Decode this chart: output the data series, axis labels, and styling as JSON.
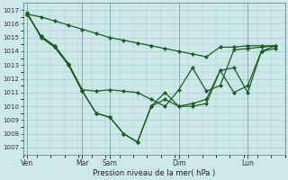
{
  "xlabel": "Pression niveau de la mer( hPa )",
  "ylim": [
    1006.5,
    1017.5
  ],
  "yticks": [
    1007,
    1008,
    1009,
    1010,
    1011,
    1012,
    1013,
    1014,
    1015,
    1016,
    1017
  ],
  "xtick_labels": [
    "Ven",
    "Mar",
    "Sam",
    "Dim",
    "Lun"
  ],
  "xtick_positions": [
    0,
    4,
    6,
    11,
    16
  ],
  "background_color": "#cce8e8",
  "line_color": "#1a5e20",
  "grid_color": "#aacccc",
  "lines": [
    {
      "x": [
        0,
        1,
        2,
        3,
        4,
        5,
        6,
        7,
        8,
        9,
        10,
        11,
        12,
        13,
        14,
        15,
        16,
        17,
        18
      ],
      "y": [
        1016.7,
        1016.5,
        1016.2,
        1015.9,
        1015.6,
        1015.3,
        1015.0,
        1014.8,
        1014.6,
        1014.4,
        1014.2,
        1014.0,
        1013.8,
        1013.6,
        1014.3,
        1014.3,
        1014.4,
        1014.4,
        1014.4
      ]
    },
    {
      "x": [
        0,
        1,
        2,
        3,
        4,
        5,
        6,
        7,
        8,
        9,
        10,
        11,
        12,
        13,
        14,
        15,
        16,
        17,
        18
      ],
      "y": [
        1016.7,
        1015.1,
        1014.4,
        1013.1,
        1011.2,
        1011.1,
        1011.2,
        1011.1,
        1011.0,
        1010.5,
        1010.0,
        1011.2,
        1012.8,
        1011.1,
        1011.5,
        1014.1,
        1014.2,
        1014.3,
        1014.4
      ]
    },
    {
      "x": [
        0,
        1,
        2,
        3,
        4,
        5,
        6,
        7,
        8,
        9,
        10,
        11,
        12,
        13,
        14,
        15,
        16,
        17,
        18
      ],
      "y": [
        1016.8,
        1015.0,
        1014.3,
        1013.0,
        1011.1,
        1009.5,
        1009.2,
        1008.0,
        1007.4,
        1010.0,
        1011.0,
        1010.0,
        1010.0,
        1010.2,
        1012.6,
        1012.8,
        1011.0,
        1014.0,
        1014.2
      ]
    },
    {
      "x": [
        0,
        1,
        2,
        3,
        4,
        5,
        6,
        7,
        8,
        9,
        10,
        11,
        12,
        13,
        14,
        15,
        16,
        17,
        18
      ],
      "y": [
        1016.7,
        1015.1,
        1014.3,
        1013.0,
        1011.1,
        1009.5,
        1009.2,
        1008.0,
        1007.4,
        1010.0,
        1010.5,
        1010.0,
        1010.2,
        1010.5,
        1012.6,
        1011.0,
        1011.5,
        1014.0,
        1014.4
      ]
    }
  ],
  "num_points": 19,
  "xlim": [
    -0.3,
    18.3
  ]
}
